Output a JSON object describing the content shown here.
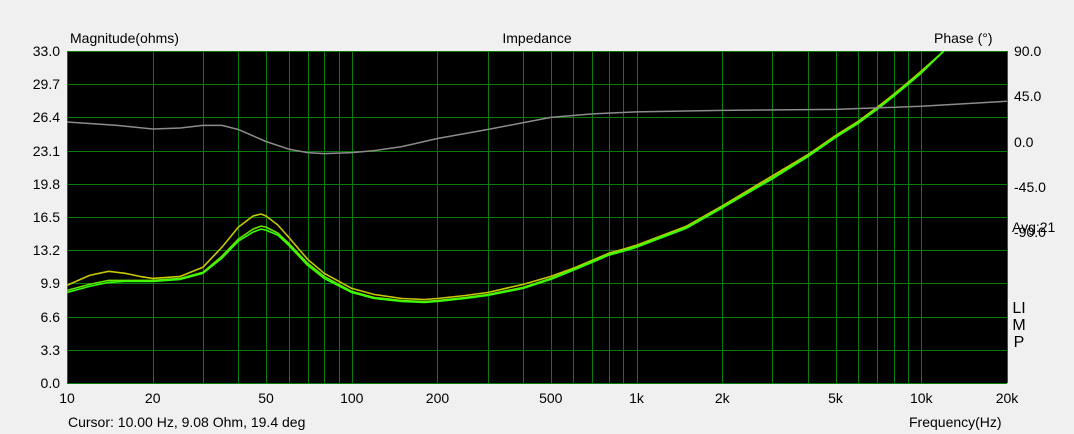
{
  "title": "Impedance",
  "left_axis_label": "Magnitude(ohms)",
  "right_axis_label": "Phase (°)",
  "x_axis_label": "Frequency(Hz)",
  "avg_label": "Avg:21",
  "limp_label": "LIMP",
  "cursor_readout": "Cursor: 10.00 Hz, 9.08 Ohm, 19.4 deg",
  "colors": {
    "plot_background": "#000000",
    "grid": "#0a7a0a",
    "magnitude_bright": "#33ff00",
    "magnitude_secondary": "#c8c800",
    "magnitude_lime": "#66e600",
    "phase": "#8c8c8c",
    "page_background": "#f0f0f0"
  },
  "chart_data": {
    "type": "line",
    "title": "Impedance",
    "xlabel": "Frequency(Hz)",
    "ylabel": "Magnitude(ohms)",
    "y2label": "Phase (°)",
    "x_scale": "log",
    "xlim": [
      10,
      20000
    ],
    "ylim": [
      0,
      33
    ],
    "y2lim": [
      -240,
      90
    ],
    "grid": true,
    "x_tick_labels": [
      "10",
      "20",
      "50",
      "100",
      "200",
      "500",
      "1k",
      "2k",
      "5k",
      "10k",
      "20k"
    ],
    "x_tick_values": [
      10,
      20,
      50,
      100,
      200,
      500,
      1000,
      2000,
      5000,
      10000,
      20000
    ],
    "y_tick_labels": [
      "0.0",
      "3.3",
      "6.6",
      "9.9",
      "13.2",
      "16.5",
      "19.8",
      "23.1",
      "26.4",
      "29.7",
      "33.0"
    ],
    "y2_tick_labels": [
      "90.0",
      "45.0",
      "0.0",
      "-45.0",
      "-90.0"
    ],
    "y2_tick_values": [
      90,
      45,
      0,
      -45,
      -90
    ],
    "series": [
      {
        "axis": "left",
        "color": "#c8c800",
        "x": [
          10,
          12,
          14,
          16,
          18,
          20,
          25,
          30,
          35,
          40,
          45,
          48,
          50,
          55,
          60,
          70,
          80,
          100,
          120,
          150,
          180,
          200,
          250,
          300,
          400,
          500,
          600,
          700,
          800,
          900,
          1000,
          1500,
          2000,
          3000,
          4000,
          5000,
          6000,
          7000,
          8000,
          9000,
          10000,
          12000
        ],
        "y": [
          9.7,
          10.7,
          11.1,
          10.9,
          10.6,
          10.4,
          10.6,
          11.5,
          13.5,
          15.5,
          16.6,
          16.8,
          16.6,
          15.7,
          14.5,
          12.3,
          10.9,
          9.4,
          8.8,
          8.4,
          8.3,
          8.4,
          8.7,
          9.0,
          9.8,
          10.6,
          11.4,
          12.2,
          12.9,
          13.3,
          13.7,
          15.6,
          17.6,
          20.6,
          22.7,
          24.6,
          26.0,
          27.4,
          28.7,
          29.9,
          31.0,
          33.0
        ]
      },
      {
        "axis": "left",
        "color": "#66e600",
        "x": [
          10,
          12,
          14,
          16,
          18,
          20,
          25,
          30,
          35,
          40,
          45,
          48,
          50,
          55,
          60,
          70,
          80,
          100,
          120,
          150,
          180,
          200,
          250,
          300,
          400,
          500,
          600,
          700,
          800,
          900,
          1000,
          1500,
          2000,
          3000,
          4000,
          5000,
          6000,
          7000,
          8000,
          9000,
          10000,
          12000
        ],
        "y": [
          9.2,
          9.8,
          10.2,
          10.2,
          10.2,
          10.2,
          10.4,
          11.0,
          12.6,
          14.3,
          15.3,
          15.6,
          15.5,
          14.9,
          13.9,
          11.9,
          10.6,
          9.1,
          8.5,
          8.2,
          8.1,
          8.2,
          8.5,
          8.8,
          9.5,
          10.4,
          11.3,
          12.1,
          12.8,
          13.2,
          13.6,
          15.5,
          17.5,
          20.4,
          22.6,
          24.5,
          25.9,
          27.3,
          28.6,
          29.8,
          30.9,
          33.0
        ]
      },
      {
        "axis": "left",
        "color": "#33ff00",
        "x": [
          10,
          12,
          14,
          16,
          18,
          20,
          25,
          30,
          35,
          40,
          45,
          48,
          50,
          55,
          60,
          70,
          80,
          100,
          120,
          150,
          180,
          200,
          250,
          300,
          400,
          500,
          600,
          700,
          800,
          900,
          1000,
          1500,
          2000,
          3000,
          4000,
          5000,
          6000,
          7000,
          8000,
          9000,
          10000,
          12000
        ],
        "y": [
          9.0,
          9.6,
          10.0,
          10.1,
          10.1,
          10.1,
          10.3,
          10.9,
          12.4,
          14.1,
          15.0,
          15.3,
          15.2,
          14.7,
          13.7,
          11.7,
          10.4,
          9.0,
          8.4,
          8.1,
          8.0,
          8.1,
          8.4,
          8.7,
          9.4,
          10.3,
          11.2,
          12.0,
          12.7,
          13.1,
          13.5,
          15.4,
          17.4,
          20.3,
          22.5,
          24.4,
          25.8,
          27.2,
          28.5,
          29.7,
          30.8,
          33.0
        ]
      },
      {
        "axis": "right",
        "color": "#8c8c8c",
        "x": [
          10,
          15,
          20,
          25,
          30,
          35,
          40,
          50,
          60,
          70,
          80,
          100,
          120,
          150,
          200,
          300,
          500,
          700,
          1000,
          2000,
          5000,
          10000,
          20000
        ],
        "y": [
          19.4,
          16.0,
          12.5,
          13.5,
          16.0,
          16.0,
          12.0,
          0.0,
          -7.5,
          -11.0,
          -12.0,
          -11.0,
          -9.0,
          -5.0,
          3.0,
          12.0,
          24.0,
          27.5,
          29.5,
          31.0,
          32.0,
          35.0,
          40.0
        ]
      }
    ]
  }
}
